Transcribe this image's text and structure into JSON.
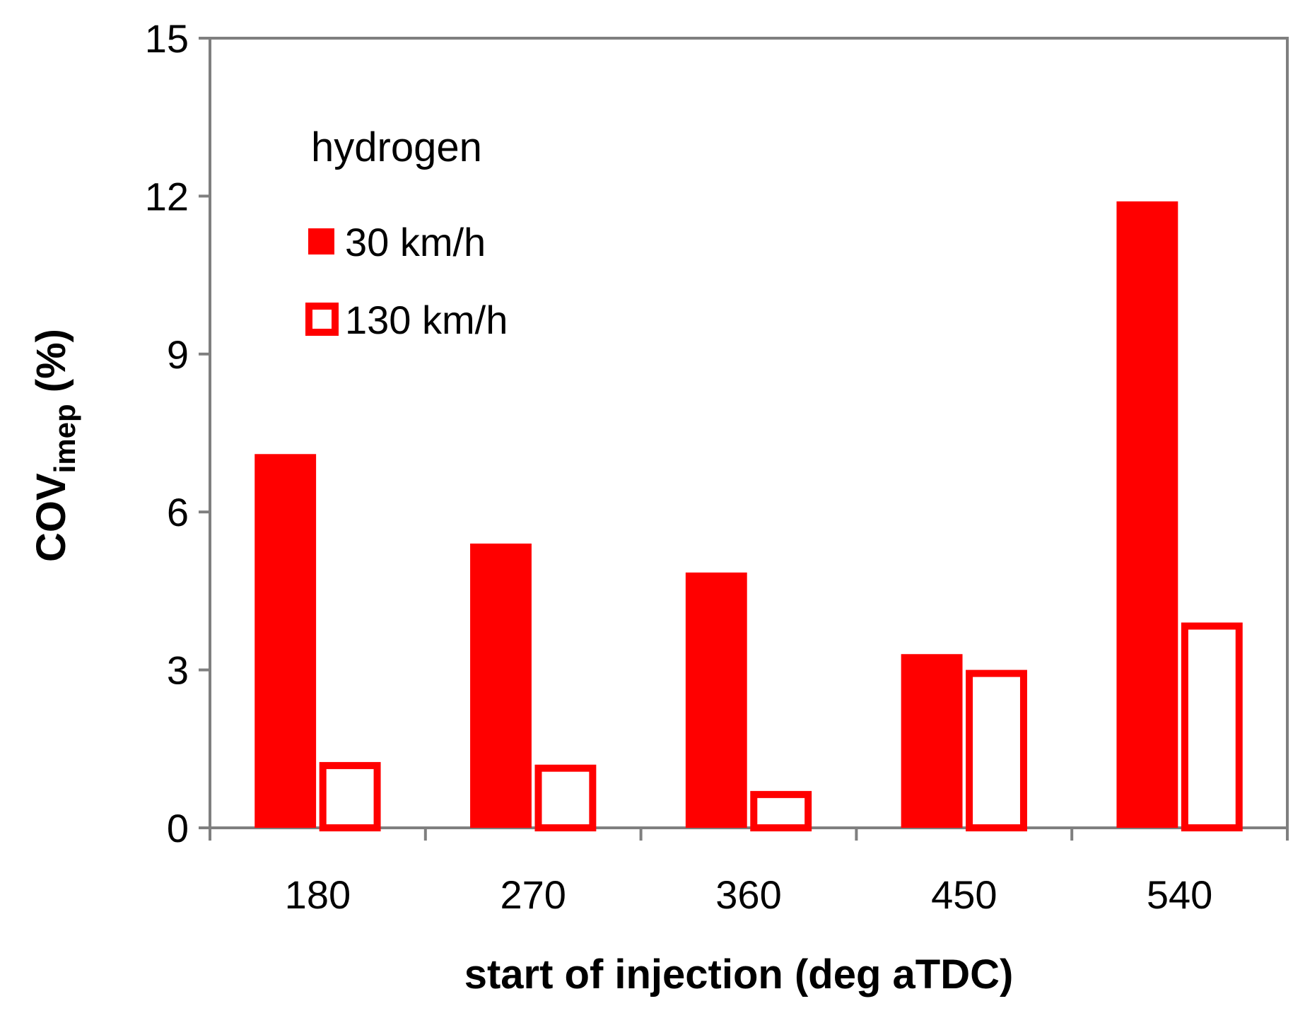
{
  "chart_data": {
    "type": "bar",
    "title": "",
    "annotation": "hydrogen",
    "xlabel": "start of injection (deg aTDC)",
    "ylabel": "COV",
    "ylabel_subscript": "imep",
    "ylabel_unit": " (%)",
    "categories": [
      "180",
      "270",
      "360",
      "450",
      "540"
    ],
    "ylim": [
      0,
      15
    ],
    "yticks": [
      0,
      3,
      6,
      9,
      12,
      15
    ],
    "grid": false,
    "legend_position": "top-left",
    "series": [
      {
        "name": "30 km/h",
        "style": "filled",
        "color": "#ff0000",
        "values": [
          7.1,
          5.4,
          4.85,
          3.3,
          11.9
        ]
      },
      {
        "name": "130 km/h",
        "style": "outline",
        "color": "#ff0000",
        "values": [
          1.25,
          1.2,
          0.7,
          3.0,
          3.9
        ]
      }
    ],
    "colors": {
      "bar": "#ff0000",
      "axis": "#7f7f7f",
      "text": "#000000"
    }
  }
}
